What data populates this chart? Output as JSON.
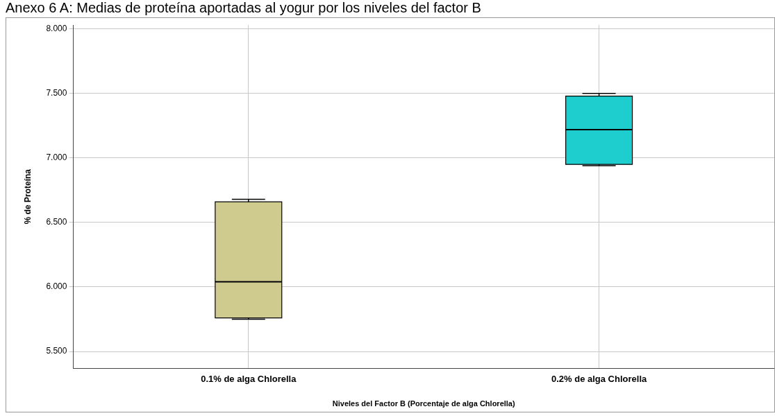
{
  "chart_data": {
    "type": "box",
    "title": "Anexo 6 A: Medias de proteína aportadas al yogur por los niveles del factor B",
    "xlabel": "Niveles del Factor B (Porcentaje de alga Chlorella)",
    "ylabel": "% de Proteína",
    "categories": [
      "0.1% de alga Chlorella",
      "0.2% de alga Chlorella"
    ],
    "colors": [
      "#cfca8e",
      "#1ecdcd"
    ],
    "boxes": [
      {
        "low": 5.75,
        "q1": 5.76,
        "median": 6.04,
        "q3": 6.66,
        "high": 6.68
      },
      {
        "low": 6.94,
        "q1": 6.95,
        "median": 7.22,
        "q3": 7.48,
        "high": 7.5
      }
    ],
    "ylim": [
      5.37,
      8.03
    ],
    "yticks": [
      {
        "value": 5.5,
        "label": "5.500"
      },
      {
        "value": 6,
        "label": "6.000"
      },
      {
        "value": 6.5,
        "label": "6.500"
      },
      {
        "value": 7,
        "label": "7.000"
      },
      {
        "value": 7.5,
        "label": "7.500"
      },
      {
        "value": 8,
        "label": "8.000"
      }
    ],
    "grid": true,
    "legend": false
  }
}
